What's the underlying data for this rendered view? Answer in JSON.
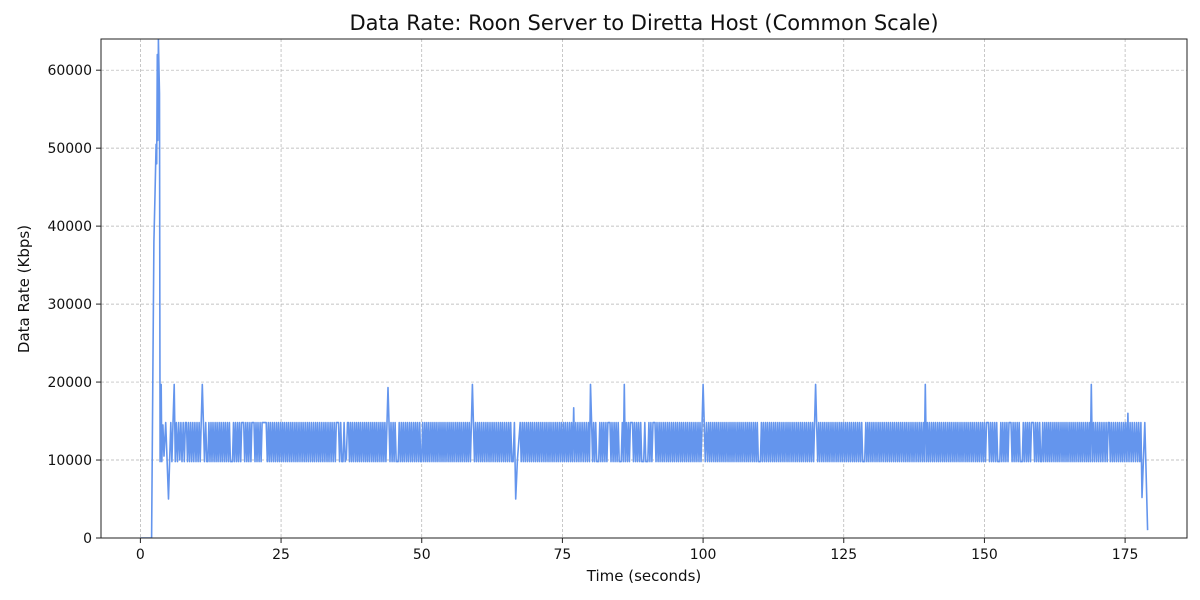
{
  "chart_data": {
    "type": "line",
    "title": "Data Rate: Roon Server to Diretta Host (Common Scale)",
    "xlabel": "Time (seconds)",
    "ylabel": "Data Rate (Kbps)",
    "xlim": [
      -7,
      186
    ],
    "ylim": [
      0,
      64000
    ],
    "xticks": [
      0,
      25,
      50,
      75,
      100,
      125,
      150,
      175
    ],
    "yticks": [
      0,
      10000,
      20000,
      30000,
      40000,
      50000,
      60000
    ],
    "grid": true,
    "color": "#6495ED",
    "series": [
      {
        "name": "",
        "x": [
          0,
          1.8,
          2.0,
          2.2,
          2.4,
          2.6,
          2.8,
          2.9,
          3.0,
          3.1,
          3.2,
          3.3,
          3.4,
          3.5,
          3.6,
          3.7,
          3.8,
          4.0,
          4.2,
          4.5,
          5.0,
          6.0,
          7.0,
          8.0,
          11.0,
          12.0,
          20.0,
          28.0,
          35.0,
          36.6,
          36.8,
          44.0,
          50.0,
          59.0,
          62.5,
          66.0,
          66.7,
          67.0,
          67.5,
          77.0,
          80.0,
          86.0,
          90.0,
          100.0,
          101.0,
          110.0,
          120.0,
          130.0,
          139.5,
          150.0,
          160.0,
          169.0,
          172.0,
          175.5,
          178.0,
          178.5,
          179.0
        ],
        "y": [
          0,
          0,
          0,
          20000,
          38000,
          44000,
          50500,
          48000,
          62000,
          51000,
          64000,
          60000,
          57000,
          9800,
          14800,
          19700,
          9800,
          14500,
          10500,
          14800,
          5000,
          19700,
          10000,
          14800,
          19700,
          9800,
          14800,
          9800,
          14800,
          10200,
          14800,
          19300,
          9800,
          19700,
          14800,
          9800,
          5000,
          10000,
          14800,
          16700,
          19700,
          19700,
          9800,
          19700,
          14800,
          9800,
          19700,
          14800,
          19700,
          14800,
          9800,
          19700,
          14800,
          16000,
          5200,
          14800,
          1000
        ]
      }
    ]
  }
}
